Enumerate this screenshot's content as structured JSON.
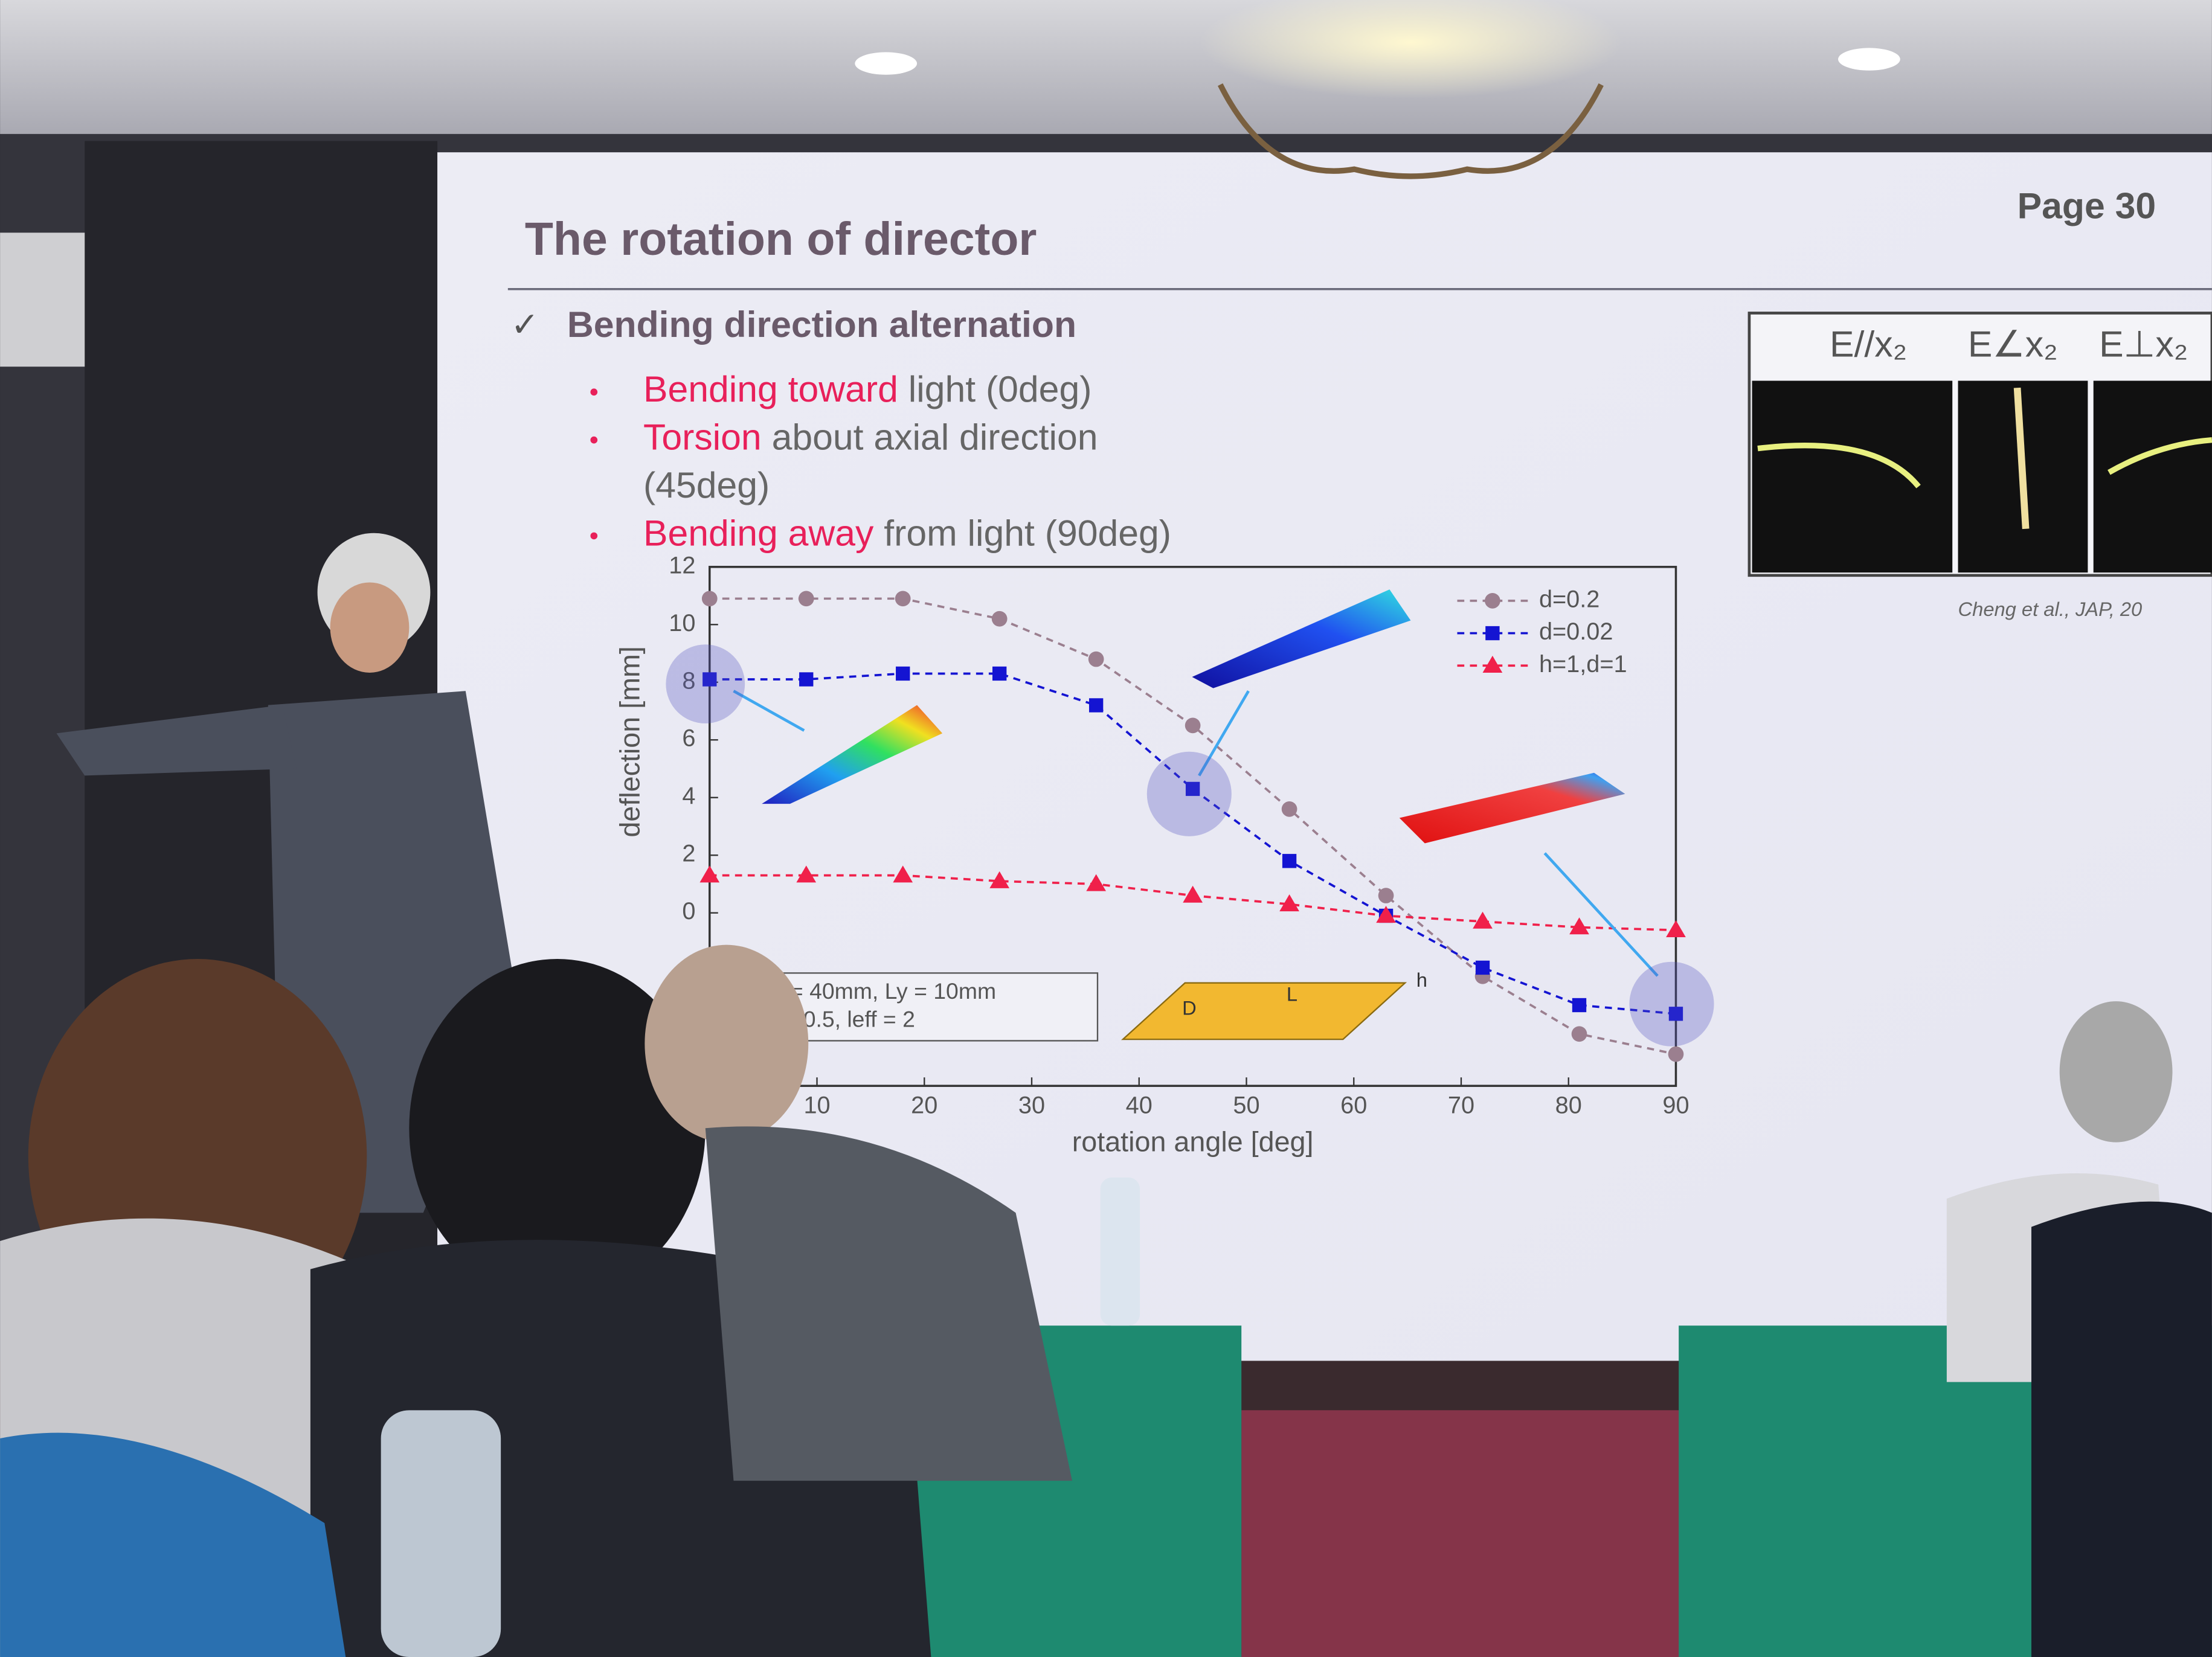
{
  "slide": {
    "title": "The rotation of director",
    "page": "Page 30",
    "heading": "Bending direction alternation",
    "bullets": [
      {
        "highlight": "Bending toward",
        "rest": "light (0deg)"
      },
      {
        "highlight": "Torsion",
        "rest": "about axial direction",
        "rest2": "(45deg)"
      },
      {
        "highlight": "Bending away",
        "rest": "from light (90deg)"
      }
    ],
    "figure_labels": [
      "E//x₂",
      "E∠x₂",
      "E⊥x₂"
    ],
    "citation": "Cheng et al., JAP, 20",
    "params": [
      "= 40mm, Ly = 10mm",
      "=0.5, leff = 2"
    ],
    "diagram_labels": [
      "L",
      "D",
      "h"
    ]
  },
  "chart_data": {
    "type": "line",
    "xlabel": "rotation angle [deg]",
    "ylabel": "deflection [mm]",
    "x": [
      0,
      9,
      18,
      27,
      36,
      45,
      54,
      63,
      72,
      81,
      90
    ],
    "xlim": [
      0,
      90
    ],
    "xticks": [
      10,
      20,
      30,
      40,
      50,
      60,
      70,
      80,
      90
    ],
    "ylim": [
      -6,
      12
    ],
    "yticks": [
      0,
      2,
      4,
      6,
      8,
      10,
      12
    ],
    "legend": "upper right",
    "series": [
      {
        "name": "d=0.2",
        "color": "#9b7f8f",
        "marker": "circle",
        "values": [
          10.9,
          10.9,
          10.9,
          10.2,
          8.8,
          6.5,
          3.6,
          0.6,
          -2.2,
          -4.2,
          -4.9
        ]
      },
      {
        "name": "d=0.02",
        "color": "#1414d2",
        "marker": "square",
        "values": [
          8.1,
          8.1,
          8.3,
          8.3,
          7.2,
          4.3,
          1.8,
          -0.1,
          -1.9,
          -3.2,
          -3.5
        ]
      },
      {
        "name": "h=1,d=1",
        "color": "#f0204a",
        "marker": "triangle",
        "values": [
          1.3,
          1.3,
          1.3,
          1.1,
          1.0,
          0.6,
          0.3,
          -0.1,
          -0.3,
          -0.5,
          -0.6
        ]
      }
    ]
  }
}
